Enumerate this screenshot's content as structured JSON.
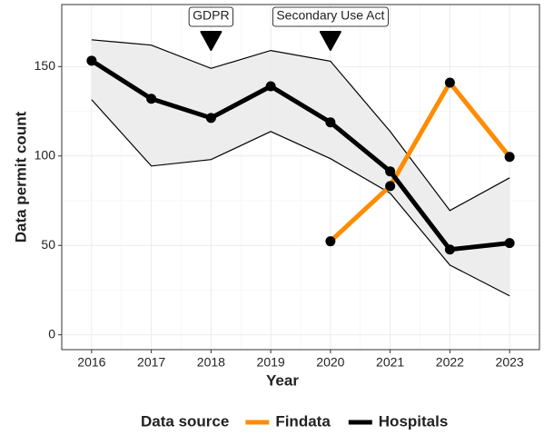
{
  "chart_data": {
    "type": "line",
    "x": [
      2016,
      2017,
      2018,
      2019,
      2020,
      2021,
      2022,
      2023
    ],
    "series": [
      {
        "name": "Findata",
        "color": "#ff8c00",
        "values": [
          null,
          null,
          null,
          null,
          52.3,
          83.2,
          141,
          99.5
        ]
      },
      {
        "name": "Hospitals",
        "color": "#000000",
        "values": [
          153.3,
          132,
          121.3,
          139,
          118.8,
          91.4,
          47.7,
          51.3
        ]
      }
    ],
    "band": {
      "upper": [
        165,
        162,
        149,
        159,
        153,
        113.7,
        69.5,
        87.8
      ],
      "lower": [
        131.5,
        94.4,
        98,
        113.7,
        98.5,
        79.2,
        39,
        21.8
      ],
      "color": "#ebebeb"
    },
    "annotations": [
      {
        "x": 2018,
        "label": "GDPR"
      },
      {
        "x": 2020,
        "label": "Secondary Use Act"
      }
    ],
    "xlabel": "Year",
    "ylabel": "Data permit count",
    "legend_title": "Data source",
    "legend": "bottom",
    "xlim": [
      2015.5,
      2023.5
    ],
    "ylim": [
      -8.3,
      184.7
    ],
    "xticks": [
      2016,
      2017,
      2018,
      2019,
      2020,
      2021,
      2022,
      2023
    ],
    "yticks": [
      0,
      50,
      100,
      150
    ],
    "grid": true
  }
}
